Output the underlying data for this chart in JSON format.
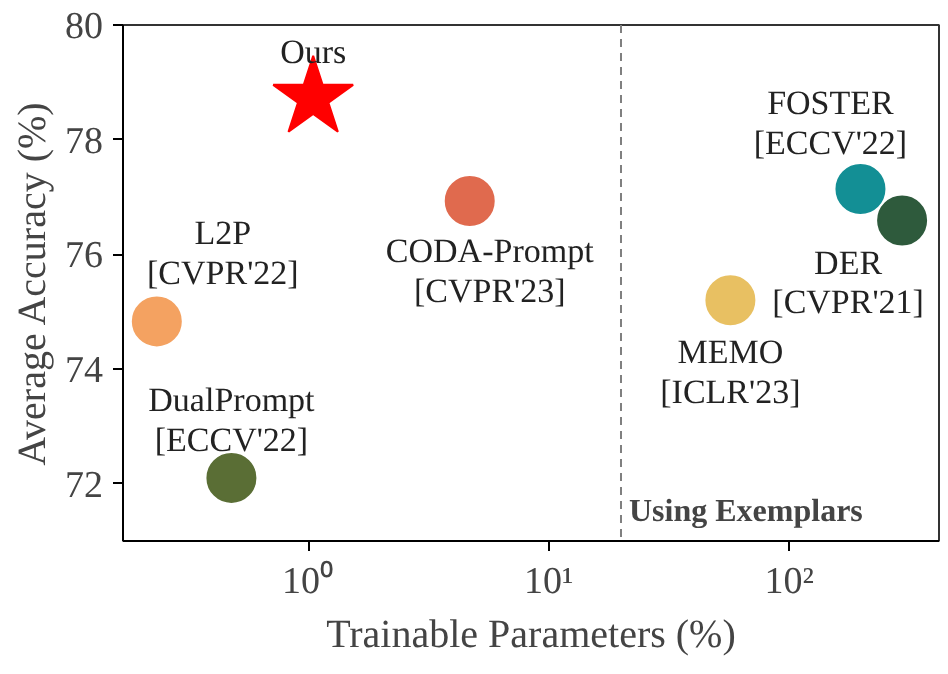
{
  "chart_data": {
    "type": "scatter",
    "xlabel": "Trainable Parameters (%)",
    "ylabel": "Average Accuracy (%)",
    "log": "x",
    "grid": false,
    "xlim": [
      0.17,
      420
    ],
    "xticks": [
      {
        "value": 1,
        "label": "10⁰"
      },
      {
        "value": 10,
        "label": "10¹"
      },
      {
        "value": 100,
        "label": "10²"
      }
    ],
    "ylim": [
      71,
      80
    ],
    "yticks": [
      72,
      74,
      76,
      78,
      80
    ],
    "ref_lines": [
      {
        "axis": "x",
        "value": 20,
        "label": "Using Exemplars",
        "color": "#808080",
        "line_style": "dashed"
      }
    ],
    "series": [
      {
        "name": "Ours",
        "color": "#ff0000",
        "marker": "star",
        "x": [
          1.05
        ],
        "values": [
          78.73
        ]
      },
      {
        "name": "L2P\n[CVPR'22]",
        "color": "#f4a261",
        "marker": "circle",
        "x": [
          0.235
        ],
        "values": [
          74.83
        ]
      },
      {
        "name": "DualPrompt\n[ECCV'22]",
        "color": "#5a6e35",
        "marker": "circle",
        "x": [
          0.48
        ],
        "values": [
          72.1
        ]
      },
      {
        "name": "CODA-Prompt\n[CVPR'23]",
        "color": "#e06a4e",
        "marker": "circle",
        "x": [
          4.7
        ],
        "values": [
          76.93
        ]
      },
      {
        "name": "FOSTER\n[ECCV'22]",
        "color": "#138f95",
        "marker": "circle",
        "x": [
          198
        ],
        "values": [
          77.14
        ]
      },
      {
        "name": "DER\n[CVPR'21]",
        "color": "#2e5a3c",
        "marker": "circle",
        "x": [
          295
        ],
        "values": [
          76.59
        ]
      },
      {
        "name": "MEMO\n[ICLR'23]",
        "color": "#e8c062",
        "marker": "circle",
        "x": [
          57
        ],
        "values": [
          75.2
        ]
      }
    ]
  }
}
